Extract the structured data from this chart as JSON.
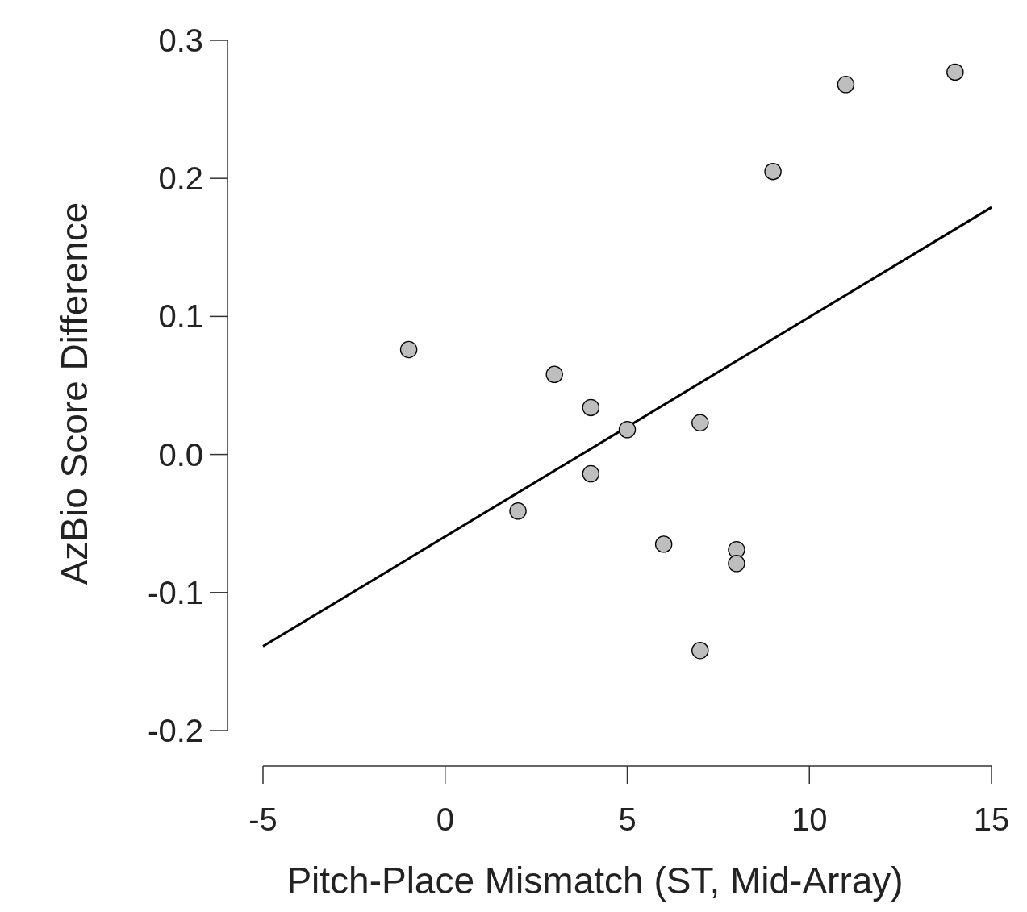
{
  "chart_data": {
    "type": "scatter",
    "xlabel": "Pitch-Place Mismatch (ST, Mid-Array)",
    "ylabel": "AzBio Score Difference",
    "xlim": [
      -5,
      15
    ],
    "xticks": [
      -5,
      0,
      5,
      10,
      15
    ],
    "ylim": [
      -0.2,
      0.3
    ],
    "yticks": [
      -0.2,
      -0.1,
      {
        "value": 0,
        "label": "0.0"
      },
      0.1,
      0.2,
      0.3
    ],
    "grid": false,
    "series": [
      {
        "marker": "circle",
        "color": "#bebebe",
        "x": [
          -1,
          3,
          4,
          5,
          7,
          4,
          2,
          6,
          8,
          8,
          7,
          9,
          11,
          14
        ],
        "values": [
          0.076,
          0.058,
          0.034,
          0.018,
          0.023,
          -0.014,
          -0.041,
          -0.065,
          -0.069,
          -0.079,
          -0.142,
          0.205,
          0.268,
          0.277
        ]
      },
      {
        "type": "line",
        "color": "#000000",
        "x": [
          -5,
          15
        ],
        "values": [
          -0.139,
          0.179
        ]
      }
    ]
  }
}
